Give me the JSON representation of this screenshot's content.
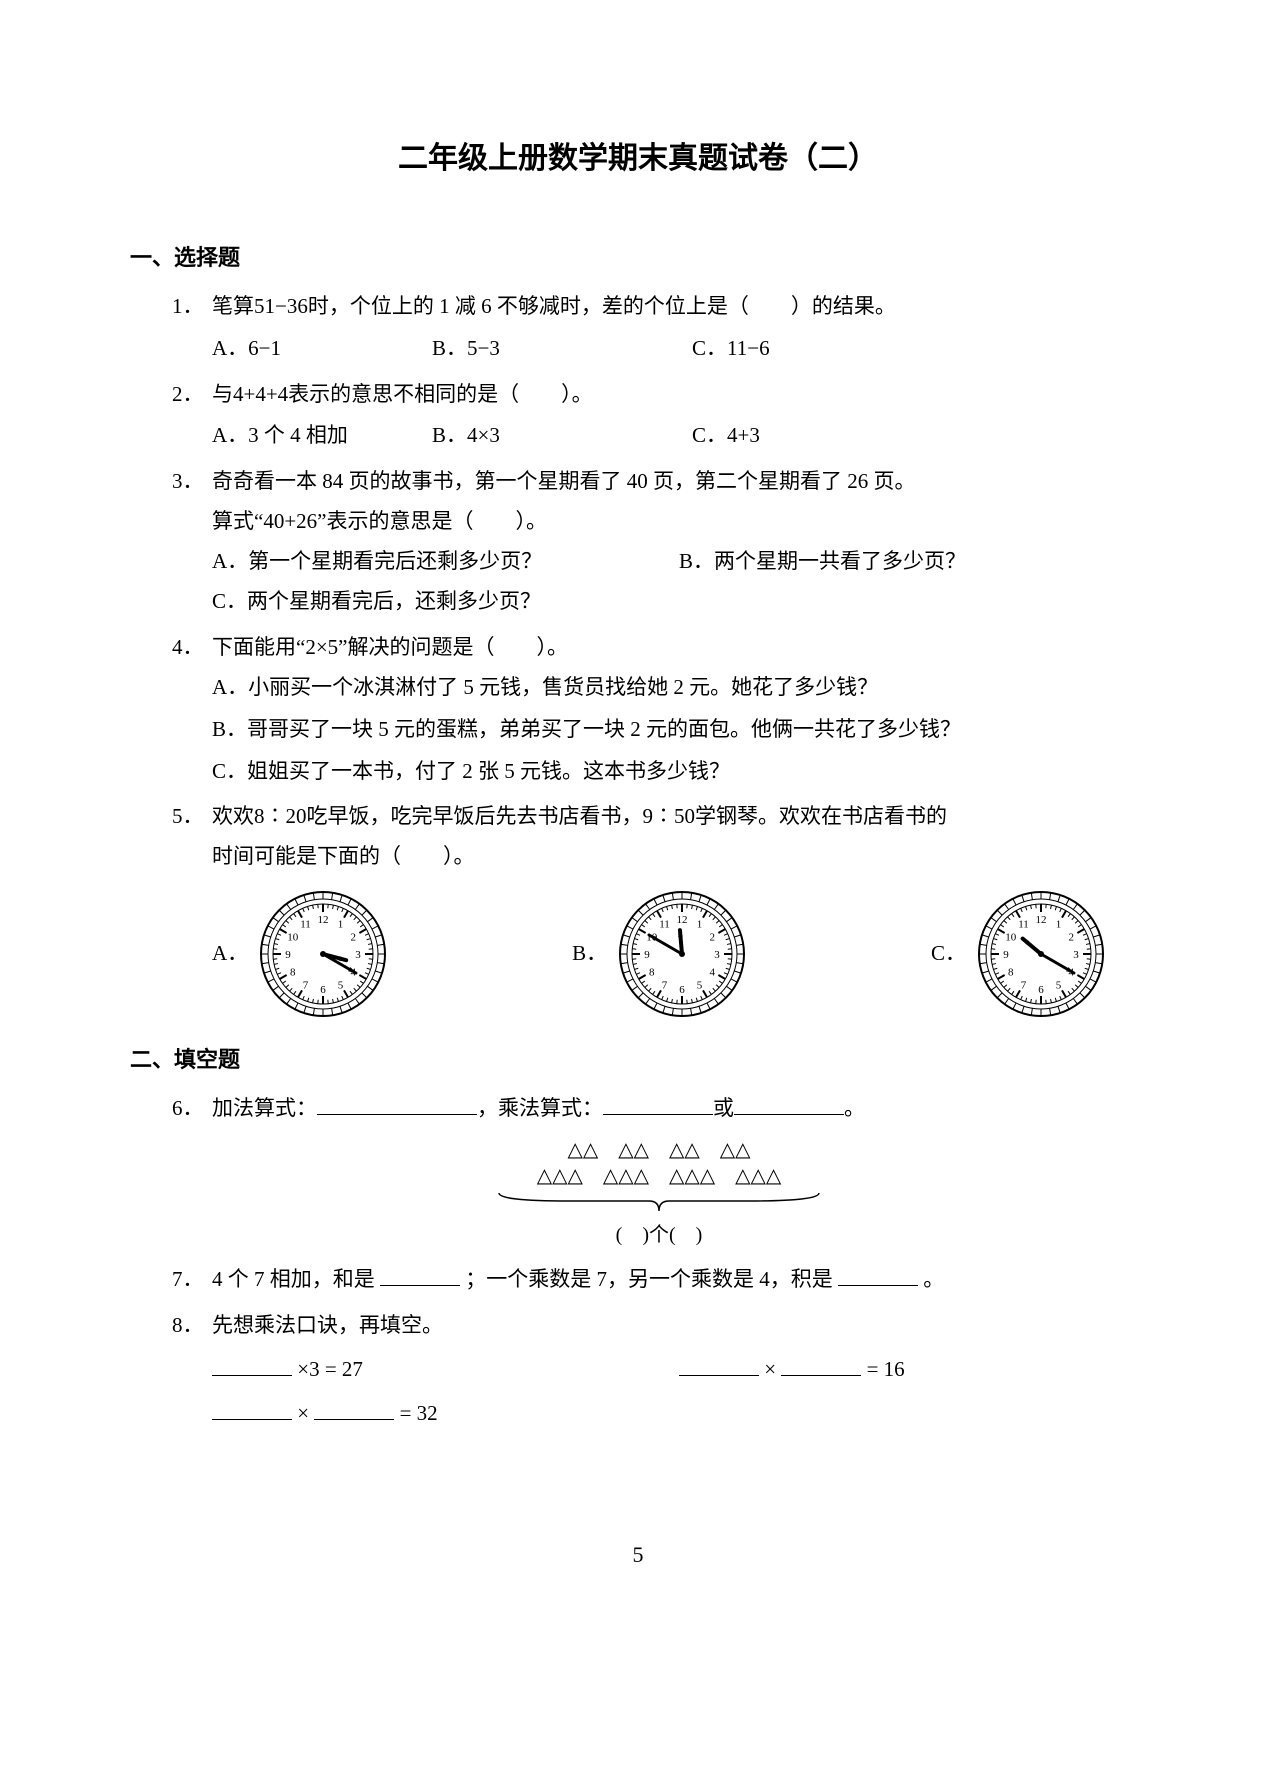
{
  "title": "二年级上册数学期末真题试卷（二）",
  "sections": {
    "one": {
      "header": "一、选择题",
      "q1": {
        "num": "1．",
        "text": "笔算51−36时，个位上的 1 减 6 不够减时，差的个位上是（　　）的结果。",
        "optA": "A．6−1",
        "optB": "B．5−3",
        "optC": "C．11−6"
      },
      "q2": {
        "num": "2．",
        "text": "与4+4+4表示的意思不相同的是（　　）。",
        "optA": "A．3 个 4 相加",
        "optB": "B．4×3",
        "optC": "C．4+3"
      },
      "q3": {
        "num": "3．",
        "text1": "奇奇看一本 84 页的故事书，第一个星期看了 40 页，第二个星期看了 26 页。",
        "text2": "算式“40+26”表示的意思是（　　）。",
        "optA": "A．第一个星期看完后还剩多少页？",
        "optB": "B．两个星期一共看了多少页？",
        "optC": "C．两个星期看完后，还剩多少页？"
      },
      "q4": {
        "num": "4．",
        "text": "下面能用“2×5”解决的问题是（　　）。",
        "optA": "A．小丽买一个冰淇淋付了 5 元钱，售货员找给她 2 元。她花了多少钱？",
        "optB": "B．哥哥买了一块 5 元的蛋糕，弟弟买了一块 2 元的面包。他俩一共花了多少钱？",
        "optC": "C．姐姐买了一本书，付了 2 张 5 元钱。这本书多少钱？"
      },
      "q5": {
        "num": "5．",
        "text1": "欢欢8∶20吃早饭，吃完早饭后先去书店看书，9∶50学钢琴。欢欢在书店看书的",
        "text2": "时间可能是下面的（　　）。",
        "optA": "A．",
        "optB": "B．",
        "optC": "C．"
      }
    },
    "two": {
      "header": "二、填空题",
      "q6": {
        "num": "6．",
        "label1": "加法算式：",
        "label2": "，乘法算式：",
        "label3": "或",
        "label4": "。",
        "bottom": "(　)个(　)"
      },
      "q7": {
        "num": "7．",
        "text1": "4 个 7 相加，和是",
        "text2": "；一个乘数是 7，另一个乘数是 4，积是",
        "text3": "。"
      },
      "q8": {
        "num": "8．",
        "text": "先想乘法口诀，再填空。",
        "eq1a": "×3 = 27",
        "eq1b_mid": "×",
        "eq1b_end": " = 16",
        "eq2_mid": "×",
        "eq2_end": " = 32"
      }
    }
  },
  "clocks": {
    "a": {
      "hour_angle": 105,
      "minute_angle": 120
    },
    "b": {
      "hour_angle": 355,
      "minute_angle": 300
    },
    "c": {
      "hour_angle": 310,
      "minute_angle": 120
    }
  },
  "triangles": {
    "top": "△△",
    "bottom": "△△△",
    "groups": 4
  },
  "page_number": "5"
}
